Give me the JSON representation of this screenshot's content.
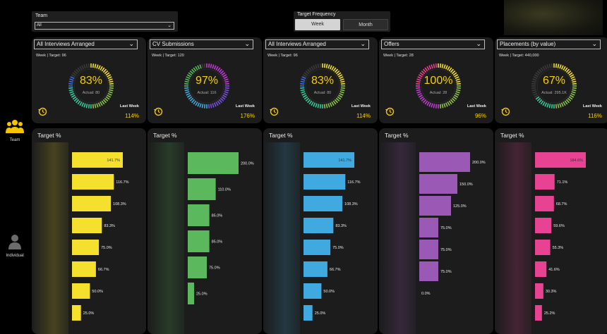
{
  "filters": {
    "team_label": "Team",
    "team_value": "All",
    "freq_label": "Target Frequency",
    "freq_week": "Week",
    "freq_month": "Month"
  },
  "nav": {
    "team_label": "Team",
    "individual_label": "Individual"
  },
  "kpis": [
    {
      "title": "All Interviews Arranged",
      "subtitle": "Week | Target: 96",
      "pct": "83%",
      "pct_value": 83,
      "actual": "Actual: 80",
      "last_week_label": "Last Week",
      "last_week": "114%"
    },
    {
      "title": "CV Submissions",
      "subtitle": "Week | Target: 120",
      "pct": "97%",
      "pct_value": 97,
      "actual": "Actual: 116",
      "last_week_label": "Last Week",
      "last_week": "176%"
    },
    {
      "title": "All Interviews Arranged",
      "subtitle": "Week | Target: 96",
      "pct": "83%",
      "pct_value": 83,
      "actual": "Actual: 80",
      "last_week_label": "Last Week",
      "last_week": "114%"
    },
    {
      "title": "Offers",
      "subtitle": "Week | Target: 28",
      "pct": "100%",
      "pct_value": 100,
      "actual": "Actual: 28",
      "last_week_label": "Last Week",
      "last_week": "96%"
    },
    {
      "title": "Placements (by value)",
      "subtitle": "Week | Target: 440,000",
      "pct": "67%",
      "pct_value": 67,
      "actual": "Actual: 295.1K",
      "last_week_label": "Last Week",
      "last_week": "116%"
    }
  ],
  "chart_data": [
    {
      "type": "bar",
      "title": "Target %",
      "color": "#f5e02e",
      "values": [
        141.7,
        116.7,
        108.3,
        83.3,
        75.0,
        66.7,
        50.0,
        25.0
      ],
      "labels": [
        "141.7%",
        "116.7%",
        "108.3%",
        "83.3%",
        "75.0%",
        "66.7%",
        "50.0%",
        "25.0%"
      ]
    },
    {
      "type": "bar",
      "title": "Target %",
      "color": "#5cb85c",
      "values": [
        200.0,
        110.0,
        85.0,
        85.0,
        75.0,
        25.0
      ],
      "labels": [
        "200.0%",
        "110.0%",
        "85.0%",
        "85.0%",
        "75.0%",
        "25.0%"
      ]
    },
    {
      "type": "bar",
      "title": "Target %",
      "color": "#3fa9e0",
      "values": [
        141.7,
        116.7,
        108.3,
        83.3,
        75.0,
        66.7,
        50.0,
        25.0
      ],
      "labels": [
        "141.7%",
        "116.7%",
        "108.3%",
        "83.3%",
        "75.0%",
        "66.7%",
        "50.0%",
        "25.0%"
      ]
    },
    {
      "type": "bar",
      "title": "Target %",
      "color": "#9b59b6",
      "values": [
        200.0,
        150.0,
        125.0,
        75.0,
        75.0,
        75.0,
        0.0
      ],
      "labels": [
        "200.0%",
        "150.0%",
        "125.0%",
        "75.0%",
        "75.0%",
        "75.0%",
        "0.0%"
      ]
    },
    {
      "type": "bar",
      "title": "Target %",
      "color": "#e84393",
      "values": [
        184.6,
        71.1,
        68.7,
        59.6,
        55.3,
        41.6,
        30.3,
        25.2
      ],
      "labels": [
        "184.6%",
        "71.1%",
        "68.7%",
        "59.6%",
        "55.3%",
        "41.6%",
        "30.3%",
        "25.2%"
      ]
    }
  ]
}
